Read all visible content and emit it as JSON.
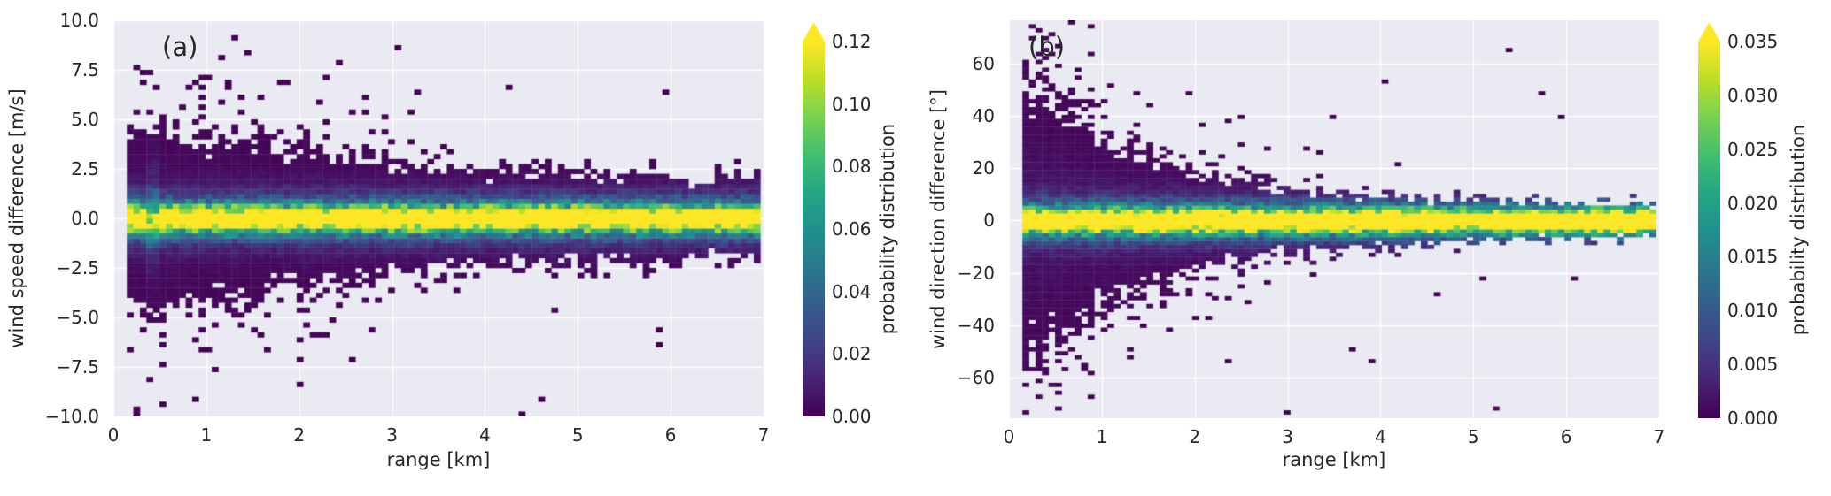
{
  "figure": {
    "background": "#ffffff",
    "plot_background": "#eaeaf2",
    "grid_color": "#ffffff",
    "text_color": "#262626",
    "colormap": "viridis",
    "viridis_stops": [
      "#440154",
      "#482475",
      "#414487",
      "#355f8d",
      "#2a788e",
      "#21918c",
      "#22a884",
      "#44bf70",
      "#7ad151",
      "#bddf26",
      "#fde725"
    ]
  },
  "chart_data": [
    {
      "type": "heatmap",
      "panel_label": "(a)",
      "title": "",
      "xlabel": "range [km]",
      "ylabel": "wind speed difference [m/s]",
      "xlim": [
        0,
        7
      ],
      "ylim": [
        -10,
        10
      ],
      "x_ticks": [
        0,
        1,
        2,
        3,
        4,
        5,
        6,
        7
      ],
      "x_tick_labels": [
        "0",
        "1",
        "2",
        "3",
        "4",
        "5",
        "6",
        "7"
      ],
      "y_ticks": [
        10,
        7.5,
        5,
        2.5,
        0,
        -2.5,
        -5,
        -7.5,
        -10
      ],
      "y_tick_labels": [
        "10.0",
        "7.5",
        "5.0",
        "2.5",
        "0.0",
        "−2.5",
        "−5.0",
        "−7.5",
        "−10.0"
      ],
      "grid": true,
      "legend": false,
      "colorbar": {
        "label": "probability distribution",
        "vmin": 0,
        "vmax": 0.12,
        "extend": "max",
        "ticks": [
          0.12,
          0.1,
          0.08,
          0.06,
          0.04,
          0.02,
          0.0
        ],
        "tick_labels": [
          "0.12",
          "0.10",
          "0.08",
          "0.06",
          "0.04",
          "0.02",
          "0.00"
        ]
      },
      "description": "2D histogram of wind speed difference vs range; probability peaks near 0 m/s (yellow band), spread shrinks from about ±5 m/s at 0.2 km to about ±2 m/s at 7 km, sparse outliers to ±9 m/s",
      "histogram": {
        "seed": 7,
        "x_start": 0.145,
        "x_end": 6.965,
        "nx": 97,
        "y_start": -10,
        "y_end": 10,
        "ny": 80,
        "peak_probability": 0.3,
        "core_scale": 0.45,
        "tail_level": 0.006,
        "envelope": [
          [
            0.2,
            5.0
          ],
          [
            1,
            4.2
          ],
          [
            2,
            3.6
          ],
          [
            3,
            2.9
          ],
          [
            4,
            2.5
          ],
          [
            5,
            2.3
          ],
          [
            6,
            2.1
          ],
          [
            7,
            2.0
          ]
        ],
        "solid_fraction": 0.75,
        "speckle_fraction": 1.32,
        "outlier_base": 0.18,
        "outlier_v_decay": 1.5,
        "anomaly_range": 0.43
      }
    },
    {
      "type": "heatmap",
      "panel_label": "(b)",
      "title": "",
      "xlabel": "range [km]",
      "ylabel": "wind direction difference [°]",
      "xlim": [
        0,
        7
      ],
      "ylim": [
        -75.5,
        76.5
      ],
      "x_ticks": [
        0,
        1,
        2,
        3,
        4,
        5,
        6,
        7
      ],
      "x_tick_labels": [
        "0",
        "1",
        "2",
        "3",
        "4",
        "5",
        "6",
        "7"
      ],
      "y_ticks": [
        60,
        40,
        20,
        0,
        -20,
        -40,
        -60
      ],
      "y_tick_labels": [
        "60",
        "40",
        "20",
        "0",
        "−20",
        "−40",
        "−60"
      ],
      "grid": true,
      "legend": false,
      "colorbar": {
        "label": "probability distribution",
        "vmin": 0,
        "vmax": 0.035,
        "extend": "max",
        "ticks": [
          0.035,
          0.03,
          0.025,
          0.02,
          0.015,
          0.01,
          0.005,
          0.0
        ],
        "tick_labels": [
          "0.035",
          "0.030",
          "0.025",
          "0.020",
          "0.015",
          "0.010",
          "0.005",
          "0.000"
        ]
      },
      "description": "2D histogram of wind direction difference vs range; probability peaks near 0° (yellow band about ±3°), spread shrinks from about ±60° at 0.2 km to about ±8° beyond 4 km, sparse outliers to ±75°",
      "histogram": {
        "seed": 13,
        "x_start": 0.145,
        "x_end": 6.965,
        "nx": 97,
        "y_start": -75.5,
        "y_end": 76.5,
        "ny": 101,
        "peak_probability": 0.09,
        "core_scale": 3.2,
        "tail_level": 0.002,
        "envelope": [
          [
            0.2,
            57
          ],
          [
            1,
            35
          ],
          [
            2,
            20
          ],
          [
            3,
            13
          ],
          [
            4,
            10
          ],
          [
            5,
            8.5
          ],
          [
            6,
            7.5
          ],
          [
            7,
            7
          ]
        ],
        "solid_fraction": 0.7,
        "speckle_fraction": 1.32,
        "outlier_base": 0.18,
        "outlier_v_decay": 6,
        "anomaly_range": null
      }
    }
  ]
}
